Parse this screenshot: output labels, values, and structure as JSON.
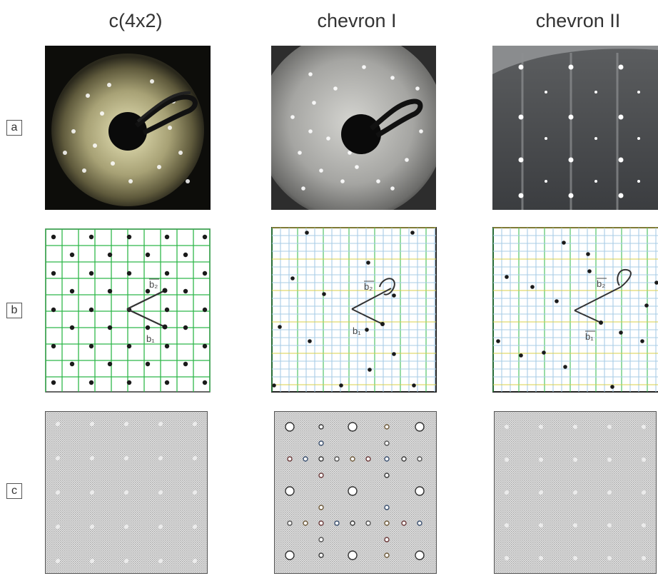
{
  "columns": [
    "c(4x2)",
    "chevron I",
    "chevron II"
  ],
  "rows": [
    "a",
    "b",
    "c"
  ],
  "vectors": {
    "b1": "b₁",
    "b2": "b₂"
  },
  "colors": {
    "grid_green": "#2fb84a",
    "grid_blue": "#8fb9d8",
    "grid_yellow": "#d9d24a",
    "dot": "#1a1a1a",
    "pattern_gray": "#c8c8c8"
  }
}
